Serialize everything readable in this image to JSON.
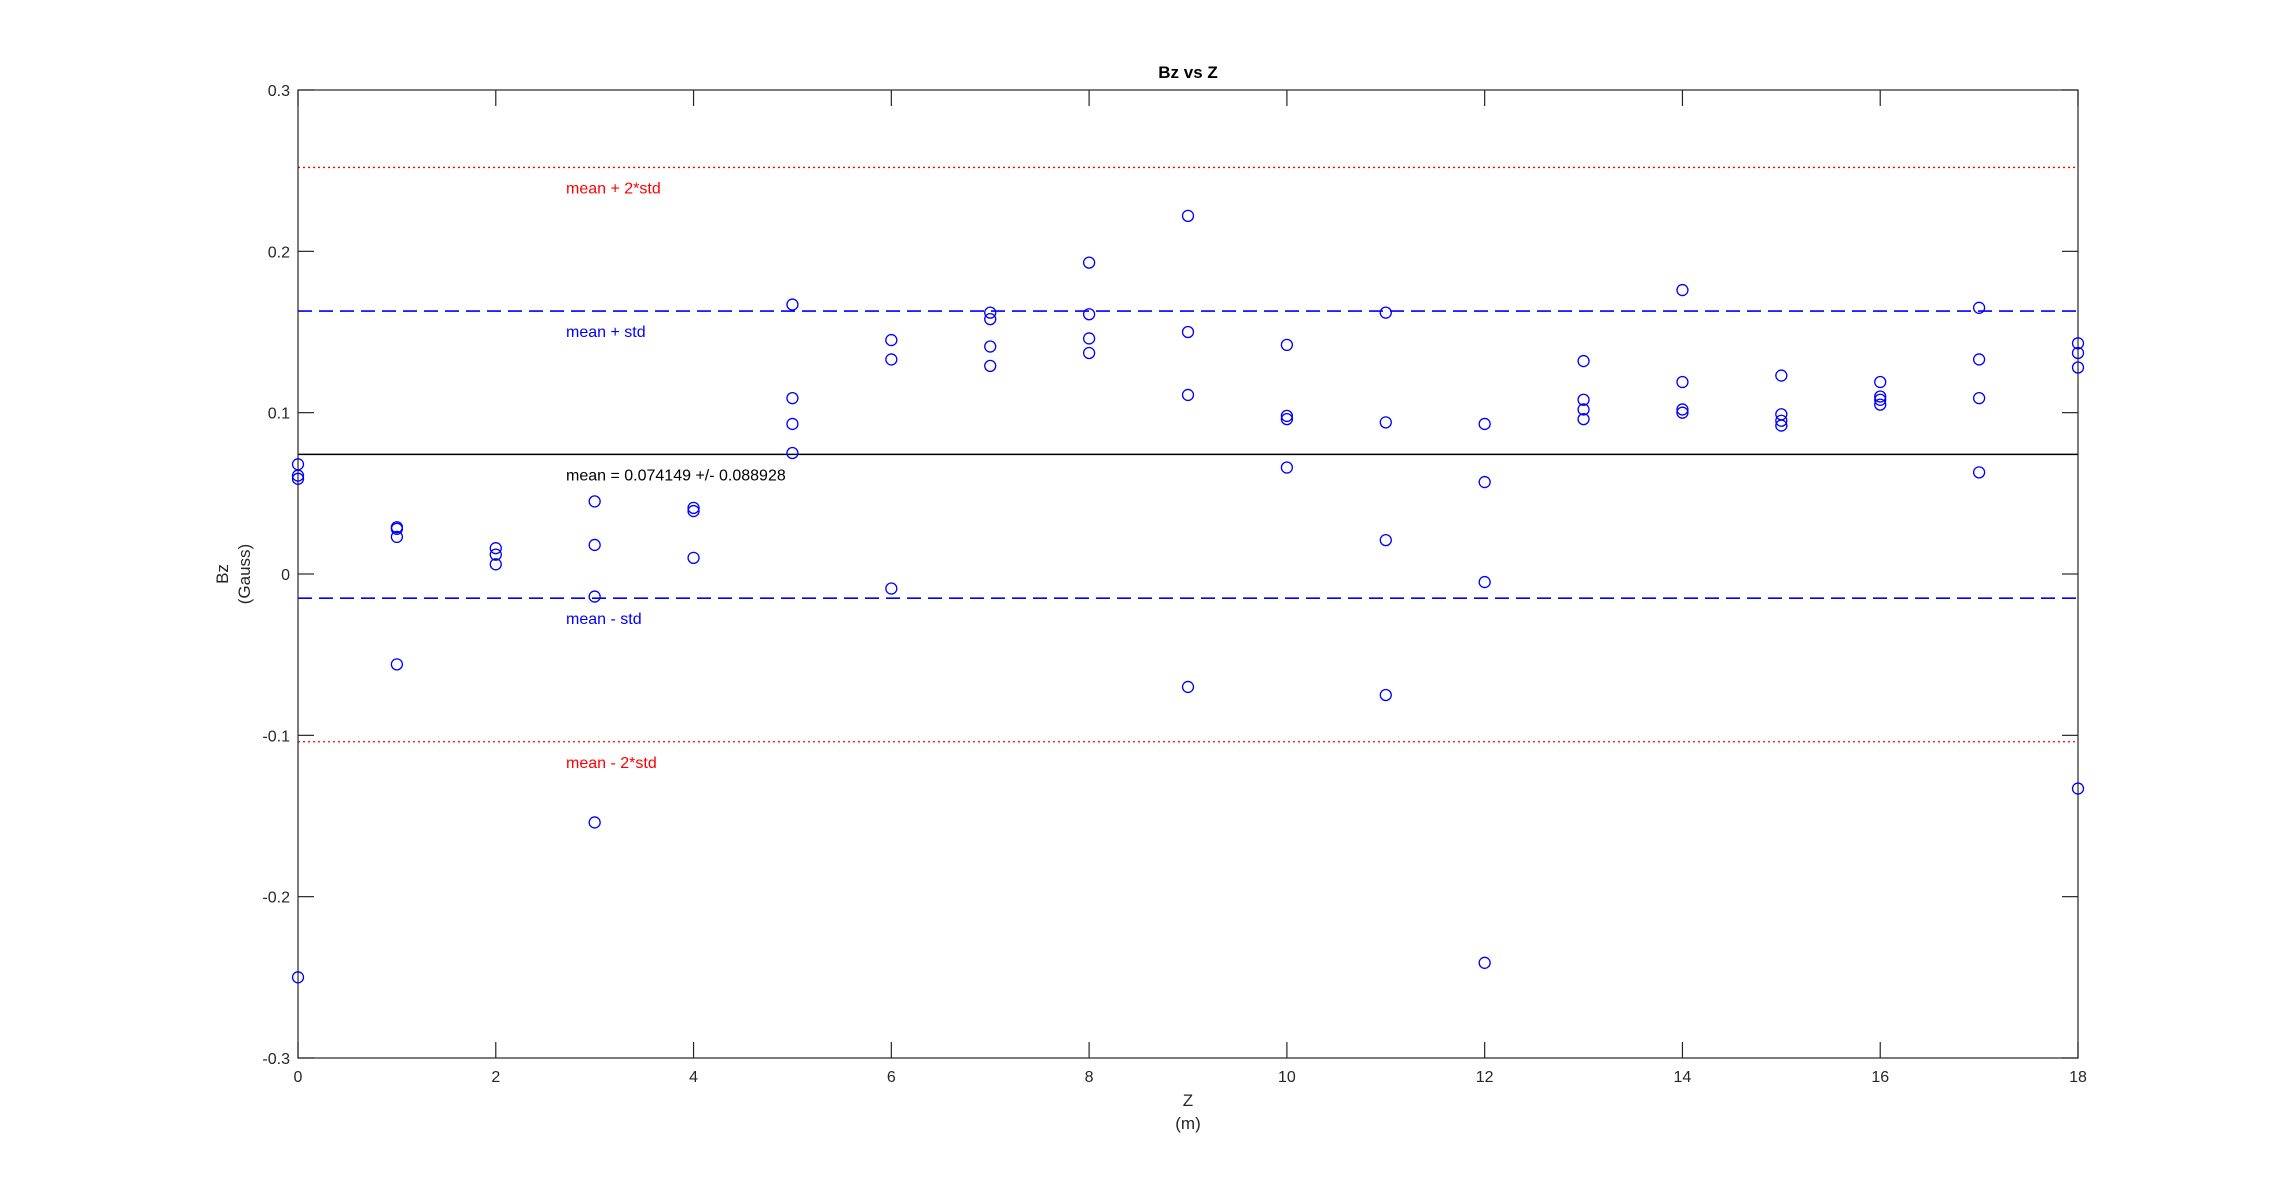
{
  "chart_data": {
    "type": "scatter",
    "title": "Bz vs Z",
    "xlabel": "Z",
    "xlabel_unit": "(m)",
    "ylabel": "Bz",
    "ylabel_unit": "(Gauss)",
    "xlim": [
      0,
      18
    ],
    "ylim": [
      -0.3,
      0.3
    ],
    "xticks": [
      0,
      2,
      4,
      6,
      8,
      10,
      12,
      14,
      16,
      18
    ],
    "yticks": [
      -0.3,
      -0.2,
      -0.1,
      0,
      0.1,
      0.2,
      0.3
    ],
    "ytick_labels": [
      "-0.3",
      "-0.2",
      "-0.1",
      "0",
      "0.1",
      "0.2",
      "0.3"
    ],
    "grid": false,
    "marker": "circle-open",
    "marker_color": "#0000ff",
    "points": [
      [
        0,
        0.068
      ],
      [
        0,
        0.061
      ],
      [
        0,
        0.059
      ],
      [
        0,
        -0.25
      ],
      [
        1,
        0.029
      ],
      [
        1,
        0.028
      ],
      [
        1,
        0.023
      ],
      [
        1,
        -0.056
      ],
      [
        2,
        0.016
      ],
      [
        2,
        0.012
      ],
      [
        2,
        0.006
      ],
      [
        3,
        0.045
      ],
      [
        3,
        0.018
      ],
      [
        3,
        -0.014
      ],
      [
        3,
        -0.154
      ],
      [
        4,
        0.041
      ],
      [
        4,
        0.039
      ],
      [
        4,
        0.01
      ],
      [
        5,
        0.167
      ],
      [
        5,
        0.109
      ],
      [
        5,
        0.093
      ],
      [
        5,
        0.075
      ],
      [
        6,
        0.145
      ],
      [
        6,
        0.133
      ],
      [
        6,
        -0.009
      ],
      [
        7,
        0.162
      ],
      [
        7,
        0.158
      ],
      [
        7,
        0.141
      ],
      [
        7,
        0.129
      ],
      [
        8,
        0.193
      ],
      [
        8,
        0.161
      ],
      [
        8,
        0.146
      ],
      [
        8,
        0.137
      ],
      [
        9,
        0.222
      ],
      [
        9,
        0.15
      ],
      [
        9,
        0.111
      ],
      [
        9,
        -0.07
      ],
      [
        10,
        0.142
      ],
      [
        10,
        0.098
      ],
      [
        10,
        0.096
      ],
      [
        10,
        0.066
      ],
      [
        11,
        0.162
      ],
      [
        11,
        0.094
      ],
      [
        11,
        0.021
      ],
      [
        11,
        -0.075
      ],
      [
        12,
        0.093
      ],
      [
        12,
        0.057
      ],
      [
        12,
        -0.005
      ],
      [
        12,
        -0.241
      ],
      [
        13,
        0.132
      ],
      [
        13,
        0.108
      ],
      [
        13,
        0.102
      ],
      [
        13,
        0.096
      ],
      [
        14,
        0.176
      ],
      [
        14,
        0.119
      ],
      [
        14,
        0.102
      ],
      [
        14,
        0.1
      ],
      [
        15,
        0.123
      ],
      [
        15,
        0.099
      ],
      [
        15,
        0.095
      ],
      [
        15,
        0.092
      ],
      [
        16,
        0.119
      ],
      [
        16,
        0.11
      ],
      [
        16,
        0.108
      ],
      [
        16,
        0.105
      ],
      [
        17,
        0.165
      ],
      [
        17,
        0.133
      ],
      [
        17,
        0.109
      ],
      [
        17,
        0.063
      ],
      [
        18,
        0.143
      ],
      [
        18,
        0.137
      ],
      [
        18,
        0.128
      ],
      [
        18,
        -0.133
      ]
    ],
    "reference_lines": [
      {
        "y": 0.252,
        "style": "dotted",
        "color": "#ff0000",
        "label": "mean + 2*std"
      },
      {
        "y": 0.163,
        "style": "dashed",
        "color": "#0000ff",
        "label": "mean + std"
      },
      {
        "y": 0.074149,
        "style": "solid",
        "color": "#000000",
        "label": "mean = 0.074149 +/- 0.088928"
      },
      {
        "y": -0.015,
        "style": "dashed",
        "color": "#0000ff",
        "label": "mean - std"
      },
      {
        "y": -0.104,
        "style": "dotted",
        "color": "#ff0000",
        "label": "mean - 2*std"
      }
    ]
  }
}
